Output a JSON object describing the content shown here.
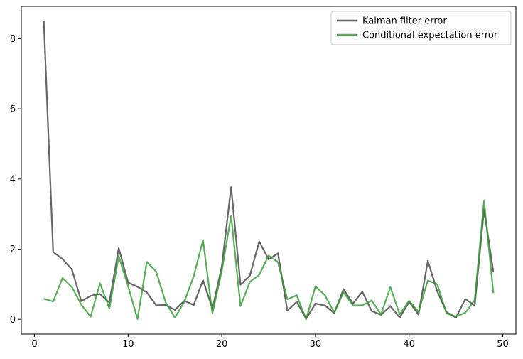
{
  "chart_data": {
    "type": "line",
    "title": "",
    "xlabel": "",
    "ylabel": "",
    "xlim": [
      -1.4,
      51.4
    ],
    "ylim": [
      -0.42,
      8.92
    ],
    "xticks": [
      0,
      10,
      20,
      30,
      40,
      50
    ],
    "yticks": [
      0,
      2,
      4,
      6,
      8
    ],
    "grid": false,
    "legend_position": "top-right",
    "x": [
      1,
      2,
      3,
      4,
      5,
      6,
      7,
      8,
      9,
      10,
      11,
      12,
      13,
      14,
      15,
      16,
      17,
      18,
      19,
      20,
      21,
      22,
      23,
      24,
      25,
      26,
      27,
      28,
      29,
      30,
      31,
      32,
      33,
      34,
      35,
      36,
      37,
      38,
      39,
      40,
      41,
      42,
      43,
      44,
      45,
      46,
      47,
      48,
      49
    ],
    "series": [
      {
        "name": "Kalman filter error",
        "color": "#404040",
        "values": [
          8.5,
          1.92,
          1.72,
          1.42,
          0.52,
          0.67,
          0.72,
          0.48,
          2.03,
          1.05,
          0.93,
          0.77,
          0.4,
          0.41,
          0.27,
          0.53,
          0.41,
          1.12,
          0.3,
          1.5,
          3.77,
          0.99,
          1.25,
          2.22,
          1.71,
          1.88,
          0.25,
          0.5,
          0.02,
          0.45,
          0.4,
          0.18,
          0.86,
          0.45,
          0.79,
          0.24,
          0.13,
          0.38,
          0.05,
          0.5,
          0.14,
          1.67,
          0.8,
          0.21,
          0.05,
          0.58,
          0.4,
          3.13,
          1.34
        ]
      },
      {
        "name": "Conditional expectation error",
        "color": "#2e9a2e",
        "values": [
          0.59,
          0.51,
          1.18,
          0.92,
          0.42,
          0.08,
          1.03,
          0.31,
          1.8,
          0.95,
          0.01,
          1.64,
          1.36,
          0.49,
          0.05,
          0.5,
          1.23,
          2.26,
          0.17,
          1.38,
          2.95,
          0.38,
          1.07,
          1.27,
          1.82,
          1.63,
          0.57,
          0.69,
          0.0,
          0.94,
          0.69,
          0.2,
          0.77,
          0.4,
          0.4,
          0.54,
          0.14,
          0.92,
          0.14,
          0.53,
          0.21,
          1.11,
          1.0,
          0.17,
          0.08,
          0.19,
          0.55,
          3.38,
          0.75
        ]
      }
    ]
  }
}
